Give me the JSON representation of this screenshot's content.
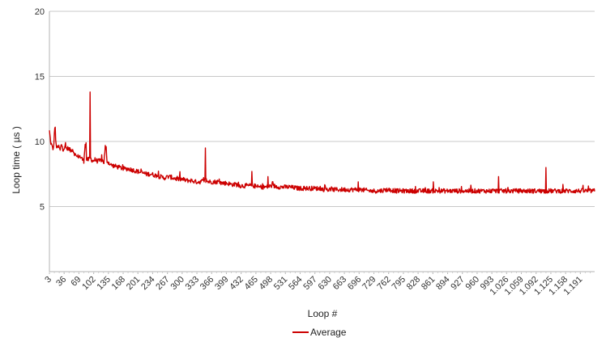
{
  "chart_data": {
    "type": "line",
    "title": "",
    "xlabel": "Loop #",
    "ylabel": "Loop time ( µs )",
    "ylim": [
      0,
      20
    ],
    "xlim": [
      3,
      1223
    ],
    "y_ticks": [
      5,
      10,
      15,
      20
    ],
    "y_tick_labels": [
      "5",
      "10",
      "15",
      "20"
    ],
    "x_tick_labels": [
      "3",
      "36",
      "69",
      "102",
      "135",
      "168",
      "201",
      "234",
      "267",
      "300",
      "333",
      "366",
      "399",
      "432",
      "465",
      "498",
      "531",
      "564",
      "597",
      "630",
      "663",
      "696",
      "729",
      "762",
      "795",
      "828",
      "861",
      "894",
      "927",
      "960",
      "993",
      "1.026",
      "1.059",
      "1.092",
      "1.125",
      "1.158",
      "1.191"
    ],
    "grid": true,
    "legend": "bottom",
    "series": [
      {
        "name": "Average",
        "color": "#cc0000",
        "x": [
          3,
          6,
          9,
          12,
          15,
          18,
          21,
          24,
          27,
          30,
          33,
          36,
          39,
          42,
          45,
          50,
          55,
          60,
          65,
          70,
          75,
          80,
          83,
          86,
          90,
          95,
          100,
          105,
          110,
          115,
          120,
          125,
          128,
          132,
          135,
          140,
          150,
          160,
          170,
          180,
          190,
          200,
          210,
          220,
          230,
          240,
          250,
          260,
          270,
          280,
          290,
          300,
          310,
          320,
          330,
          340,
          350,
          360,
          370,
          380,
          390,
          400,
          410,
          420,
          430,
          440,
          450,
          460,
          470,
          480,
          490,
          500,
          520,
          540,
          560,
          580,
          600,
          620,
          640,
          660,
          680,
          700,
          720,
          740,
          760,
          780,
          800,
          820,
          840,
          860,
          880,
          900,
          920,
          940,
          960,
          980,
          1000,
          1020,
          1040,
          1060,
          1080,
          1100,
          1120,
          1140,
          1160,
          1180,
          1200,
          1223
        ],
        "y": [
          10.8,
          9.9,
          9.6,
          9.4,
          11.1,
          9.7,
          9.5,
          9.6,
          9.3,
          9.8,
          9.4,
          9.5,
          9.6,
          9.4,
          9.5,
          9.3,
          9.4,
          9.0,
          8.8,
          8.9,
          8.7,
          8.5,
          9.9,
          8.6,
          8.6,
          8.7,
          8.5,
          8.6,
          8.5,
          8.5,
          8.6,
          8.4,
          9.6,
          8.5,
          8.4,
          8.2,
          8.1,
          8.0,
          7.9,
          7.9,
          7.8,
          7.7,
          7.6,
          7.5,
          7.5,
          7.4,
          7.3,
          7.2,
          7.3,
          7.2,
          7.1,
          7.1,
          7.0,
          7.0,
          6.9,
          6.9,
          7.0,
          6.9,
          6.9,
          6.9,
          6.8,
          6.8,
          6.7,
          6.7,
          6.6,
          6.6,
          6.6,
          6.6,
          6.5,
          6.5,
          6.5,
          6.6,
          6.5,
          6.5,
          6.4,
          6.4,
          6.4,
          6.3,
          6.3,
          6.3,
          6.3,
          6.3,
          6.2,
          6.2,
          6.3,
          6.2,
          6.2,
          6.2,
          6.2,
          6.2,
          6.2,
          6.2,
          6.2,
          6.2,
          6.2,
          6.2,
          6.2,
          6.2,
          6.2,
          6.2,
          6.2,
          6.2,
          6.2,
          6.2,
          6.2,
          6.2,
          6.2,
          6.2
        ]
      }
    ],
    "annotations_spikes": [
      {
        "x": 16,
        "y": 11.1
      },
      {
        "x": 85,
        "y": 9.9
      },
      {
        "x": 94,
        "y": 13.8
      },
      {
        "x": 130,
        "y": 9.6
      },
      {
        "x": 352,
        "y": 9.5
      },
      {
        "x": 456,
        "y": 7.7
      },
      {
        "x": 492,
        "y": 7.3
      },
      {
        "x": 694,
        "y": 6.9
      },
      {
        "x": 862,
        "y": 6.9
      },
      {
        "x": 1008,
        "y": 7.3
      },
      {
        "x": 1114,
        "y": 8.0
      }
    ]
  }
}
